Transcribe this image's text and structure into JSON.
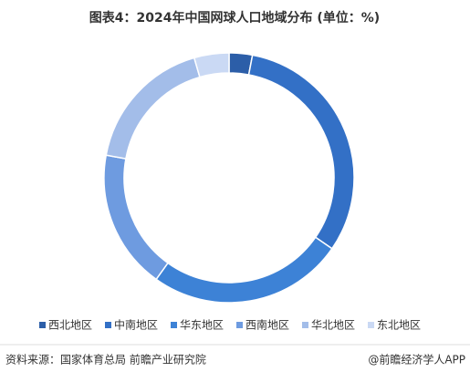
{
  "chart_data": {
    "type": "donut",
    "title": "图表4：2024年中国网球人口地域分布 (单位：%)",
    "categories": [
      "西北地区",
      "中南地区",
      "华东地区",
      "西南地区",
      "华北地区",
      "东北地区"
    ],
    "values": [
      3,
      31.6,
      25.3,
      18,
      17.6,
      4.5
    ],
    "colors": [
      "#2c5ea8",
      "#3370c6",
      "#3d82d6",
      "#6e9be0",
      "#a3bde9",
      "#cad9f4"
    ],
    "source": "资料来源：国家体育总局 前瞻产业研究院",
    "brand": "@前瞻经济学人APP"
  }
}
